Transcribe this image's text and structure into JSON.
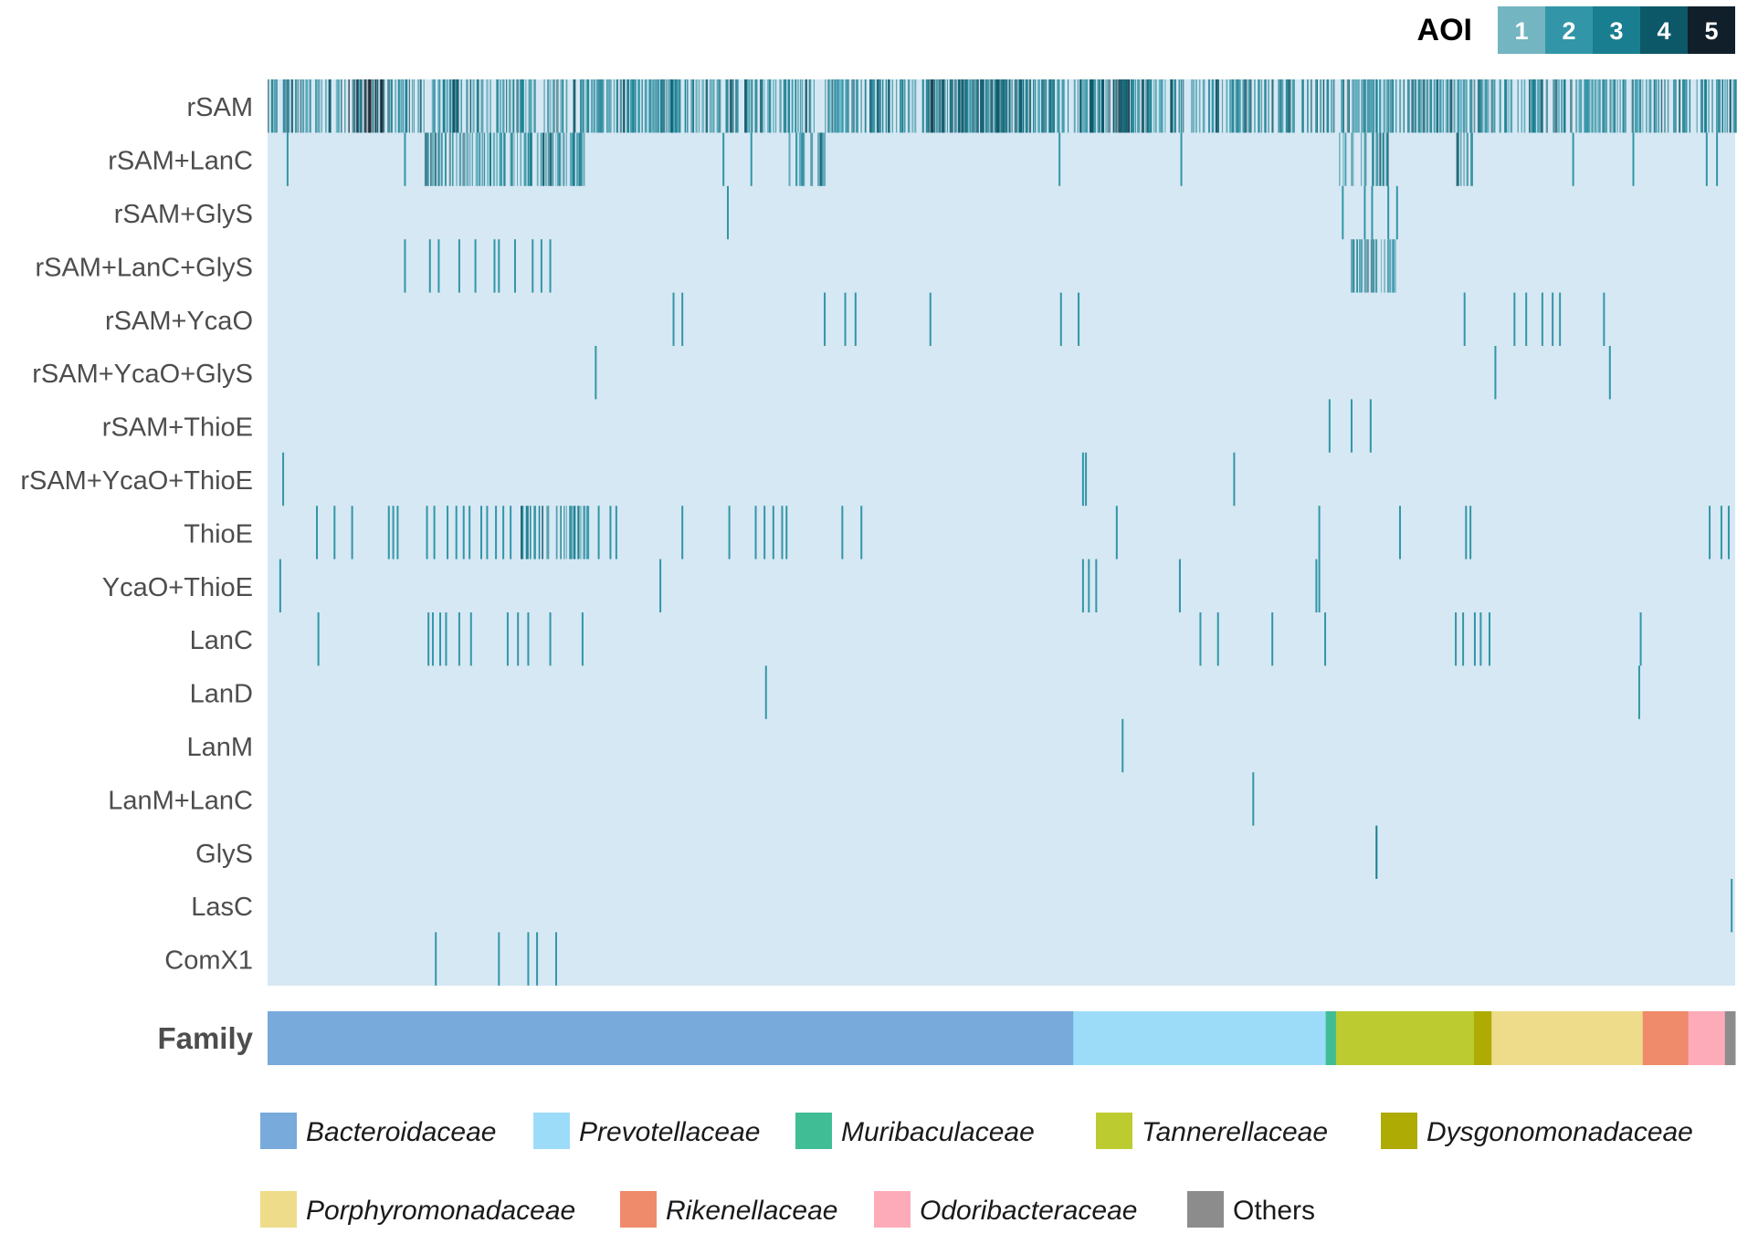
{
  "chart_data": {
    "type": "heatmap",
    "rows": [
      "rSAM",
      "rSAM+LanC",
      "rSAM+GlyS",
      "rSAM+LanC+GlyS",
      "rSAM+YcaO",
      "rSAM+YcaO+GlyS",
      "rSAM+ThioE",
      "rSAM+YcaO+ThioE",
      "ThioE",
      "YcaO+ThioE",
      "LanC",
      "LanD",
      "LanM",
      "LanM+LanC",
      "GlyS",
      "LasC",
      "ComX1"
    ],
    "x_range": [
      0,
      1
    ],
    "background_color": "#d6e8f3",
    "aoi_legend": {
      "title": "AOI",
      "levels": [
        {
          "label": "1",
          "color": "#74b5c2"
        },
        {
          "label": "2",
          "color": "#3296a8"
        },
        {
          "label": "3",
          "color": "#197e90"
        },
        {
          "label": "4",
          "color": "#0d5868"
        },
        {
          "label": "5",
          "color": "#111f2b"
        }
      ]
    },
    "dense_blocks": [
      {
        "row": 0,
        "start": 0.0,
        "end": 1.0,
        "density": 0.85,
        "level": 2
      },
      {
        "row": 0,
        "start": 0.055,
        "end": 0.08,
        "density": 0.95,
        "level": 4
      },
      {
        "row": 0,
        "start": 0.45,
        "end": 0.52,
        "density": 0.95,
        "level": 3
      },
      {
        "row": 0,
        "start": 0.56,
        "end": 0.6,
        "density": 0.9,
        "level": 3
      },
      {
        "row": 1,
        "start": 0.107,
        "end": 0.217,
        "density": 0.9,
        "level": 2
      },
      {
        "row": 1,
        "start": 0.355,
        "end": 0.38,
        "density": 0.7,
        "level": 2
      },
      {
        "row": 1,
        "start": 0.73,
        "end": 0.765,
        "density": 0.7,
        "level": 2
      },
      {
        "row": 1,
        "start": 0.81,
        "end": 0.82,
        "density": 0.7,
        "level": 2
      },
      {
        "row": 3,
        "start": 0.738,
        "end": 0.77,
        "density": 0.8,
        "level": 2
      },
      {
        "row": 8,
        "start": 0.17,
        "end": 0.218,
        "density": 0.85,
        "level": 2
      }
    ],
    "marks": [
      {
        "row": 1,
        "x": [
          0.013,
          0.093,
          0.31,
          0.329,
          0.539,
          0.622,
          0.889,
          0.93,
          0.98,
          0.987
        ],
        "level": 1
      },
      {
        "row": 2,
        "x": [
          0.313,
          0.732,
          0.747,
          0.752,
          0.763,
          0.769
        ],
        "level": 1
      },
      {
        "row": 3,
        "x": [
          0.093,
          0.11,
          0.116,
          0.13,
          0.141,
          0.154,
          0.157,
          0.168,
          0.18,
          0.186,
          0.192
        ],
        "level": 1
      },
      {
        "row": 4,
        "x": [
          0.276,
          0.282,
          0.379,
          0.393,
          0.4,
          0.451,
          0.54,
          0.552,
          0.815,
          0.849,
          0.857,
          0.868,
          0.875,
          0.88,
          0.91
        ],
        "level": 1
      },
      {
        "row": 5,
        "x": [
          0.223,
          0.836,
          0.914
        ],
        "level": 1
      },
      {
        "row": 6,
        "x": [
          0.723,
          0.738,
          0.751
        ],
        "level": 1
      },
      {
        "row": 7,
        "x": [
          0.01,
          0.555,
          0.557,
          0.658
        ],
        "level": 1
      },
      {
        "row": 8,
        "x": [
          0.033,
          0.045,
          0.057,
          0.082,
          0.085,
          0.088,
          0.108,
          0.113,
          0.122,
          0.128,
          0.133,
          0.137,
          0.145,
          0.149,
          0.155,
          0.16,
          0.165,
          0.225,
          0.233,
          0.237,
          0.282,
          0.314,
          0.332,
          0.338,
          0.344,
          0.35,
          0.353,
          0.391,
          0.404,
          0.578,
          0.716,
          0.771,
          0.816,
          0.819,
          0.982,
          0.99,
          0.995
        ],
        "level": 1
      },
      {
        "row": 9,
        "x": [
          0.008,
          0.267,
          0.555,
          0.559,
          0.564,
          0.621,
          0.714,
          0.716
        ],
        "level": 1
      },
      {
        "row": 10,
        "x": [
          0.034,
          0.109,
          0.112,
          0.117,
          0.121,
          0.13,
          0.138,
          0.163,
          0.17,
          0.177,
          0.192,
          0.214,
          0.635,
          0.647,
          0.684,
          0.72,
          0.809,
          0.814,
          0.822,
          0.826,
          0.832,
          0.935
        ],
        "level": 1
      },
      {
        "row": 11,
        "x": [
          0.339,
          0.934
        ],
        "level": 1
      },
      {
        "row": 12,
        "x": [
          0.582
        ],
        "level": 1
      },
      {
        "row": 13,
        "x": [
          0.671
        ],
        "level": 1
      },
      {
        "row": 14,
        "x": [
          0.755
        ],
        "level": 2
      },
      {
        "row": 15,
        "x": [
          0.997
        ],
        "level": 1
      },
      {
        "row": 16,
        "x": [
          0.114,
          0.157,
          0.177,
          0.183,
          0.196
        ],
        "level": 1
      }
    ],
    "family_row": {
      "label": "Family",
      "segments": [
        {
          "name": "Bacteroidaceae",
          "fraction": 0.549,
          "color": "#78aadb"
        },
        {
          "name": "Prevotellaceae",
          "fraction": 0.172,
          "color": "#9ddcf9"
        },
        {
          "name": "Muribaculaceae",
          "fraction": 0.007,
          "color": "#41bd95"
        },
        {
          "name": "Tannerellaceae",
          "fraction": 0.094,
          "color": "#bccb30"
        },
        {
          "name": "Dysgonomonadaceae",
          "fraction": 0.012,
          "color": "#adab04"
        },
        {
          "name": "Porphyromonadaceae",
          "fraction": 0.103,
          "color": "#eedc8a"
        },
        {
          "name": "Rikenellaceae",
          "fraction": 0.031,
          "color": "#ef8a6a"
        },
        {
          "name": "Odoribacteraceae",
          "fraction": 0.025,
          "color": "#fdabb9"
        },
        {
          "name": "Others",
          "fraction": 0.007,
          "color": "#8c8c8c"
        }
      ]
    },
    "legend_placement": "bottom"
  }
}
